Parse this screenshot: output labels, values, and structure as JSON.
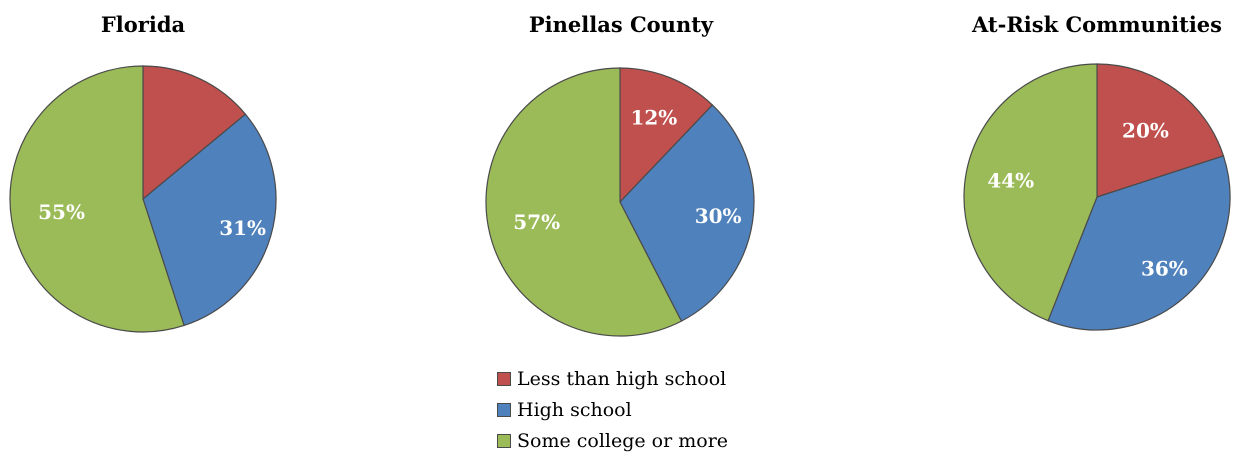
{
  "chart_data": [
    {
      "type": "pie",
      "title": "Florida",
      "categories": [
        "Less than high school",
        "High school",
        "Some college or more"
      ],
      "values": [
        14,
        31,
        55
      ],
      "labels": [
        "",
        "31%",
        "55%"
      ],
      "colors": [
        "#c0504d",
        "#4f81bd",
        "#9bbb59"
      ]
    },
    {
      "type": "pie",
      "title": "Pinellas County",
      "categories": [
        "Less than high school",
        "High school",
        "Some college or more"
      ],
      "values": [
        12,
        30,
        57
      ],
      "labels": [
        "12%",
        "30%",
        "57%"
      ],
      "colors": [
        "#c0504d",
        "#4f81bd",
        "#9bbb59"
      ]
    },
    {
      "type": "pie",
      "title": "At-Risk Communities",
      "categories": [
        "Less than high school",
        "High school",
        "Some college or more"
      ],
      "values": [
        20,
        36,
        44
      ],
      "labels": [
        "20%",
        "36%",
        "44%"
      ],
      "colors": [
        "#c0504d",
        "#4f81bd",
        "#9bbb59"
      ]
    }
  ],
  "legend": {
    "items": [
      {
        "label": "Less than high school",
        "color": "#c0504d"
      },
      {
        "label": "High school",
        "color": "#4f81bd"
      },
      {
        "label": "Some college or more",
        "color": "#9bbb59"
      }
    ]
  }
}
